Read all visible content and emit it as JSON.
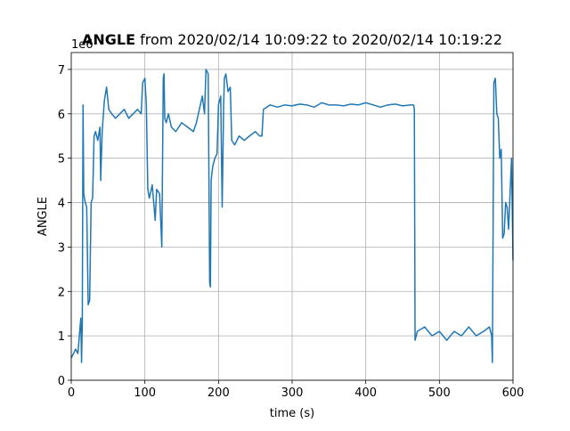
{
  "chart_data": {
    "type": "line",
    "title_bold": "ANGLE",
    "title": "from 2020/02/14 10:09:22 to 2020/02/14 10:19:22",
    "x_label": "time (s)",
    "y_label": "ANGLE",
    "y_offset_label": "1e6",
    "xlim": [
      0,
      600
    ],
    "ylim": [
      0,
      7.38
    ],
    "xticks": [
      0,
      100,
      200,
      300,
      400,
      500,
      600
    ],
    "yticks": [
      0,
      1,
      2,
      3,
      4,
      5,
      6,
      7
    ],
    "grid": true,
    "series": [
      {
        "name": "ANGLE",
        "color": "#1f77b4",
        "x": [
          0,
          3,
          6,
          9,
          11,
          13,
          14,
          15,
          16,
          17,
          19,
          21,
          23,
          25,
          27,
          29,
          31,
          33,
          36,
          39,
          40,
          42,
          45,
          48,
          51,
          55,
          60,
          66,
          72,
          78,
          84,
          90,
          95,
          97,
          100,
          102,
          104,
          106,
          110,
          114,
          116,
          120,
          123,
          125,
          126,
          127,
          129,
          132,
          136,
          142,
          150,
          158,
          166,
          170,
          174,
          178,
          181,
          183,
          186,
          188,
          189,
          190,
          192,
          195,
          198,
          200,
          203,
          205,
          207,
          208,
          210,
          213,
          216,
          218,
          222,
          228,
          235,
          242,
          250,
          256,
          259,
          261,
          270,
          280,
          290,
          300,
          310,
          320,
          330,
          340,
          350,
          360,
          370,
          380,
          390,
          400,
          410,
          420,
          430,
          440,
          450,
          460,
          465,
          466,
          467,
          470,
          480,
          490,
          500,
          510,
          520,
          530,
          540,
          550,
          560,
          568,
          571,
          572,
          574,
          576,
          578,
          580,
          582,
          584,
          586,
          588,
          590,
          592,
          594,
          596,
          598,
          600
        ],
        "values": [
          0.5,
          0.6,
          0.7,
          0.6,
          1.0,
          1.4,
          0.4,
          1.3,
          6.2,
          4.2,
          4.0,
          3.9,
          1.7,
          1.8,
          4.0,
          4.1,
          5.5,
          5.6,
          5.4,
          5.7,
          4.5,
          5.6,
          6.3,
          6.6,
          6.1,
          6.0,
          5.9,
          6.0,
          6.1,
          5.9,
          6.0,
          6.1,
          6.0,
          6.7,
          6.8,
          6.2,
          4.3,
          4.1,
          4.4,
          3.6,
          4.3,
          4.2,
          3.0,
          6.8,
          6.9,
          5.9,
          5.8,
          6.0,
          5.7,
          5.6,
          5.8,
          5.7,
          5.6,
          5.8,
          6.1,
          6.4,
          6.0,
          7.0,
          6.9,
          2.2,
          2.1,
          4.5,
          4.8,
          5.0,
          5.1,
          6.2,
          6.4,
          3.9,
          6.2,
          6.8,
          6.9,
          6.5,
          6.6,
          5.4,
          5.3,
          5.5,
          5.4,
          5.5,
          5.6,
          5.5,
          5.5,
          6.1,
          6.2,
          6.15,
          6.2,
          6.18,
          6.22,
          6.2,
          6.15,
          6.25,
          6.2,
          6.2,
          6.18,
          6.22,
          6.2,
          6.25,
          6.2,
          6.15,
          6.2,
          6.22,
          6.18,
          6.2,
          6.2,
          6.1,
          0.9,
          1.1,
          1.2,
          1.0,
          1.1,
          0.9,
          1.1,
          1.0,
          1.2,
          1.0,
          1.1,
          1.2,
          1.0,
          0.4,
          6.7,
          6.8,
          6.0,
          5.9,
          5.0,
          5.2,
          3.2,
          3.3,
          4.0,
          3.9,
          3.4,
          4.2,
          5.0,
          2.7
        ]
      }
    ]
  }
}
